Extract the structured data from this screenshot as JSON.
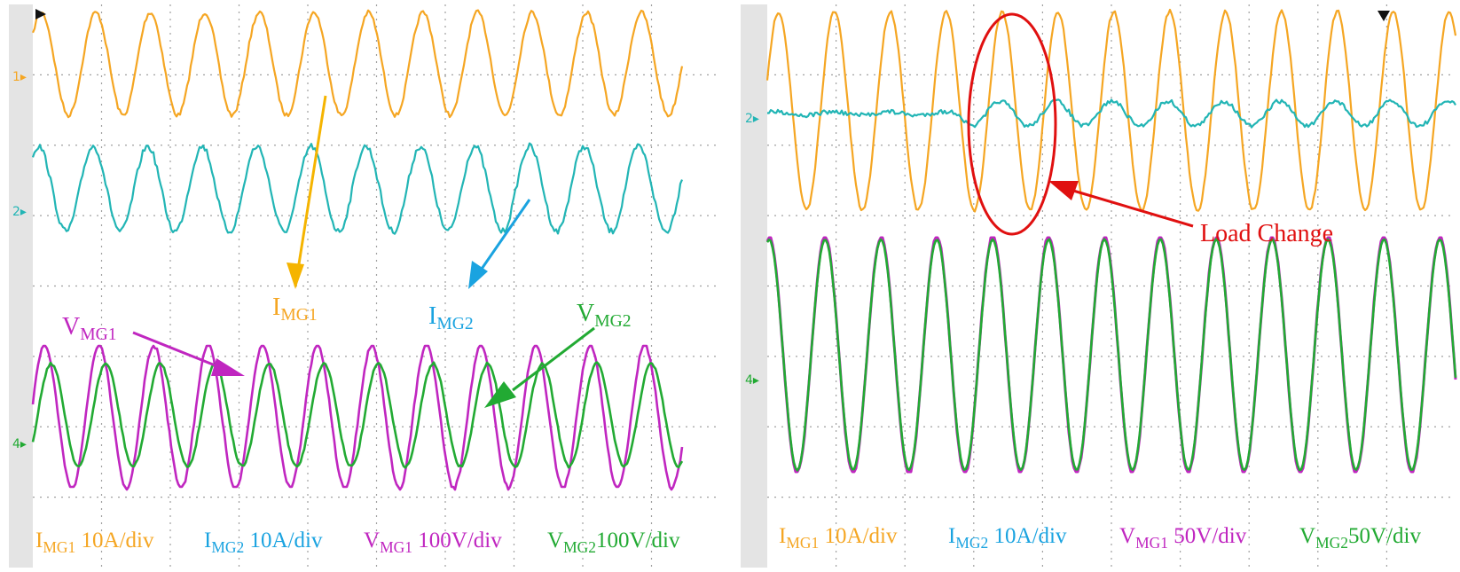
{
  "panels": [
    {
      "id": "left",
      "channels": [
        {
          "id": "1",
          "marker": "1",
          "signal": "I_MG1",
          "color": "#f5a623"
        },
        {
          "id": "2",
          "marker": "2",
          "signal": "I_MG2",
          "color": "#22b5b5"
        },
        {
          "id": "4",
          "marker": "4",
          "signal": "V_MG1",
          "color": "#c026c0"
        },
        {
          "id": "4b",
          "marker": "",
          "signal": "V_MG2",
          "color": "#22aa33"
        }
      ],
      "annotations": [
        {
          "id": "imgs1",
          "main": "I",
          "sub": "MG1",
          "color": "#f5a623"
        },
        {
          "id": "imgs2",
          "main": "I",
          "sub": "MG2",
          "color": "#1aa3e0"
        },
        {
          "id": "vmg1",
          "main": "V",
          "sub": "MG1",
          "color": "#c026c0"
        },
        {
          "id": "vmg2",
          "main": "V",
          "sub": "MG2",
          "color": "#22aa33"
        }
      ],
      "legend": [
        {
          "main": "I",
          "sub": "MG1",
          "scale": " 10A/div",
          "color": "#f5a623"
        },
        {
          "main": "I",
          "sub": "MG2",
          "scale": " 10A/div",
          "color": "#1aa3e0"
        },
        {
          "main": "V",
          "sub": "MG1",
          "scale": " 100V/div",
          "color": "#c026c0"
        },
        {
          "main": "V",
          "sub": "MG2",
          "scale": "100V/div",
          "color": "#22aa33"
        }
      ]
    },
    {
      "id": "right",
      "channels": [
        {
          "id": "2",
          "marker": "2",
          "signal": "I_MG2",
          "color": "#22b5b5"
        },
        {
          "id": "1",
          "marker": "",
          "signal": "I_MG1",
          "color": "#f5a623"
        },
        {
          "id": "4",
          "marker": "4",
          "signal": "V_MG1 / V_MG2",
          "color": "#22aa33"
        }
      ],
      "annotations": [
        {
          "id": "load",
          "text": "Load Change",
          "color": "#e01010"
        }
      ],
      "legend": [
        {
          "main": "I",
          "sub": "MG1",
          "scale": " 10A/div",
          "color": "#f5a623"
        },
        {
          "main": "I",
          "sub": "MG2",
          "scale": " 10A/div",
          "color": "#1aa3e0"
        },
        {
          "main": "V",
          "sub": "MG1",
          "scale": " 50V/div",
          "color": "#c026c0"
        },
        {
          "main": "V",
          "sub": "MG2",
          "scale": "50V/div",
          "color": "#22aa33"
        }
      ]
    }
  ],
  "chart_data": [
    {
      "type": "line",
      "title": "",
      "xlabel": "",
      "ylabel": "",
      "grid": true,
      "series": [
        {
          "name": "I_MG1",
          "scale": "10A/div",
          "cycles_shown": 12.5
        },
        {
          "name": "I_MG2",
          "scale": "10A/div",
          "cycles_shown": 12.5
        },
        {
          "name": "V_MG1",
          "scale": "100V/div",
          "cycles_shown": 12.5
        },
        {
          "name": "V_MG2",
          "scale": "100V/div",
          "cycles_shown": 12.5
        }
      ]
    },
    {
      "type": "line",
      "title": "",
      "xlabel": "",
      "ylabel": "",
      "grid": true,
      "annotation": "Load Change",
      "series": [
        {
          "name": "I_MG1",
          "scale": "10A/div",
          "cycles_shown": 12.5
        },
        {
          "name": "I_MG2",
          "scale": "10A/div",
          "cycles_shown": 12.5
        },
        {
          "name": "V_MG1",
          "scale": "50V/div",
          "cycles_shown": 12.5
        },
        {
          "name": "V_MG2",
          "scale": "50V/div",
          "cycles_shown": 12.5
        }
      ]
    }
  ]
}
